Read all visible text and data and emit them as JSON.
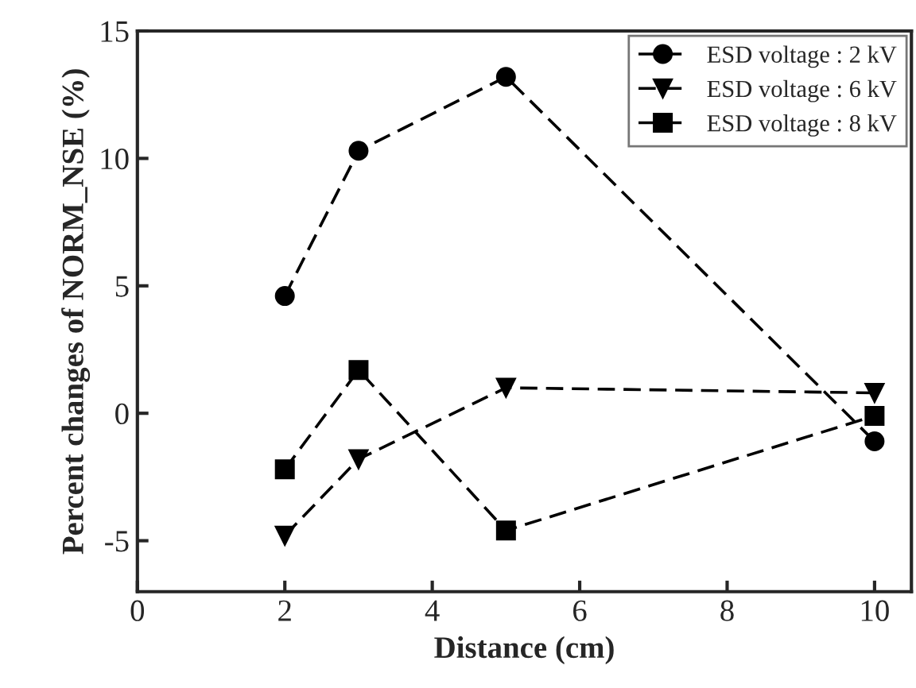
{
  "chart_data": {
    "type": "line",
    "xlabel": "Distance (cm)",
    "ylabel": "Percent changes of NORM_NSE (%)",
    "x": [
      2,
      3,
      5,
      10
    ],
    "series": [
      {
        "name": "ESD voltage : 2 kV",
        "color": "#000000",
        "values": [
          4.6,
          10.3,
          13.2,
          -1.1
        ],
        "marker": "circle"
      },
      {
        "name": "ESD voltage : 6 kV",
        "color": "#000000",
        "values": [
          -4.8,
          -1.8,
          1.0,
          0.8
        ],
        "marker": "triangle"
      },
      {
        "name": "ESD voltage : 8 kV",
        "color": "#000000",
        "values": [
          -2.2,
          1.7,
          -4.6,
          -0.1
        ],
        "marker": "square"
      }
    ],
    "xlim": [
      0,
      10.5
    ],
    "xticks": [
      0,
      2,
      4,
      6,
      8,
      10
    ],
    "ylim": [
      -7,
      15
    ],
    "yticks": [
      -5,
      0,
      5,
      10,
      15
    ],
    "line_style": "dashed",
    "legend": "top right",
    "grid": false
  }
}
